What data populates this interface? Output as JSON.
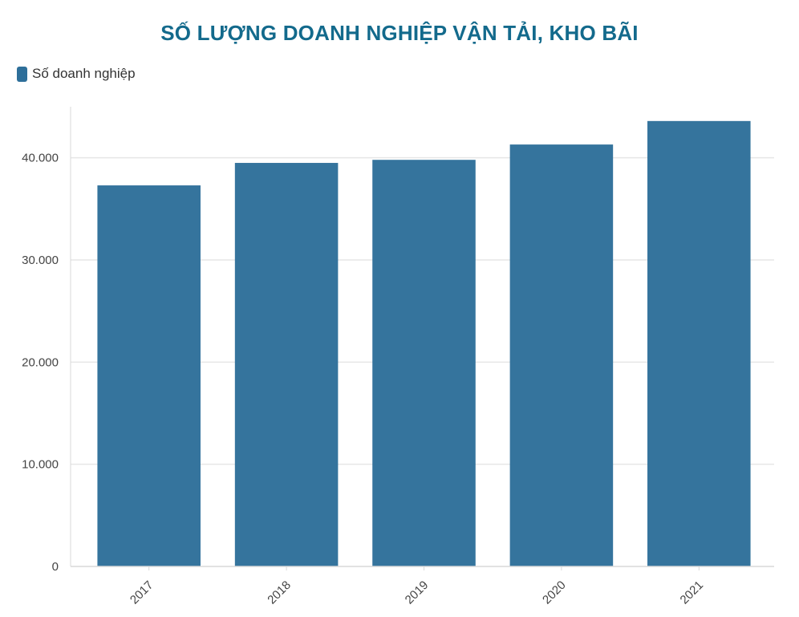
{
  "chart_data": {
    "type": "bar",
    "title": "SỐ LƯỢNG DOANH NGHIỆP VẬN TẢI, KHO BÃI",
    "categories": [
      "2017",
      "2018",
      "2019",
      "2020",
      "2021"
    ],
    "series": [
      {
        "name": "Số doanh nghiệp",
        "values": [
          37300,
          39500,
          39800,
          41300,
          43600
        ]
      }
    ],
    "y_ticks": [
      "0",
      "10.000",
      "20.000",
      "30.000",
      "40.000"
    ],
    "y_tick_values": [
      0,
      10000,
      20000,
      30000,
      40000
    ],
    "ylim": [
      0,
      45000
    ],
    "grid": true,
    "legend_position": "top-left",
    "colors": {
      "bar": "#2e6f9a",
      "title": "#136a8c",
      "grid": "#e6e6e6",
      "axis": "#d9d9d9"
    }
  }
}
